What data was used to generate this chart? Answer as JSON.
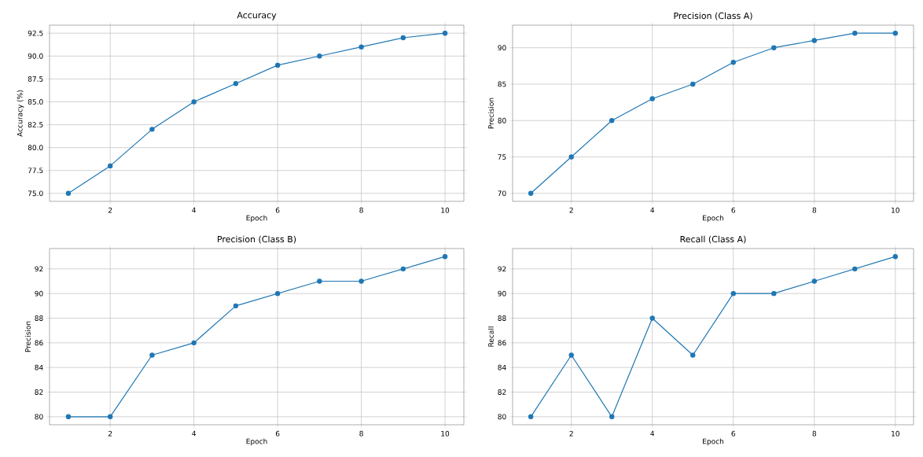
{
  "chart_data": [
    {
      "type": "line",
      "title": "Accuracy",
      "xlabel": "Epoch",
      "ylabel": "Accuracy (%)",
      "x": [
        1,
        2,
        3,
        4,
        5,
        6,
        7,
        8,
        9,
        10
      ],
      "values": [
        75,
        78,
        82,
        85,
        87,
        89,
        90,
        91,
        92,
        92.5
      ],
      "color": "#1f77b4",
      "marker": "circle",
      "grid": true,
      "xlim": [
        0.55,
        10.45
      ],
      "ylim": [
        74.125,
        93.375
      ],
      "xticks": [
        2,
        4,
        6,
        8,
        10
      ],
      "yticks": [
        {
          "value": 75,
          "label": "75.0"
        },
        {
          "value": 77.5,
          "label": "77.5"
        },
        {
          "value": 80,
          "label": "80.0"
        },
        {
          "value": 82.5,
          "label": "82.5"
        },
        {
          "value": 85,
          "label": "85.0"
        },
        {
          "value": 87.5,
          "label": "87.5"
        },
        {
          "value": 90,
          "label": "90.0"
        },
        {
          "value": 92.5,
          "label": "92.5"
        }
      ]
    },
    {
      "type": "line",
      "title": "Precision (Class A)",
      "xlabel": "Epoch",
      "ylabel": "Precision",
      "x": [
        1,
        2,
        3,
        4,
        5,
        6,
        7,
        8,
        9,
        10
      ],
      "values": [
        70,
        75,
        80,
        83,
        85,
        88,
        90,
        91,
        92,
        92
      ],
      "color": "#1f77b4",
      "marker": "circle",
      "grid": true,
      "xlim": [
        0.55,
        10.45
      ],
      "ylim": [
        68.9,
        93.1
      ],
      "xticks": [
        2,
        4,
        6,
        8,
        10
      ],
      "yticks": [
        70,
        75,
        80,
        85,
        90
      ]
    },
    {
      "type": "line",
      "title": "Precision (Class B)",
      "xlabel": "Epoch",
      "ylabel": "Precision",
      "x": [
        1,
        2,
        3,
        4,
        5,
        6,
        7,
        8,
        9,
        10
      ],
      "values": [
        80,
        80,
        85,
        86,
        89,
        90,
        91,
        91,
        92,
        93
      ],
      "color": "#1f77b4",
      "marker": "circle",
      "grid": true,
      "xlim": [
        0.55,
        10.45
      ],
      "ylim": [
        79.35,
        93.65
      ],
      "xticks": [
        2,
        4,
        6,
        8,
        10
      ],
      "yticks": [
        80,
        82,
        84,
        86,
        88,
        90,
        92
      ]
    },
    {
      "type": "line",
      "title": "Recall (Class A)",
      "xlabel": "Epoch",
      "ylabel": "Recall",
      "x": [
        1,
        2,
        3,
        4,
        5,
        6,
        7,
        8,
        9,
        10
      ],
      "values": [
        80,
        85,
        80,
        88,
        85,
        90,
        90,
        91,
        92,
        93
      ],
      "color": "#1f77b4",
      "marker": "circle",
      "grid": true,
      "xlim": [
        0.55,
        10.45
      ],
      "ylim": [
        79.35,
        93.65
      ],
      "xticks": [
        2,
        4,
        6,
        8,
        10
      ],
      "yticks": [
        80,
        82,
        84,
        86,
        88,
        90,
        92
      ]
    }
  ]
}
